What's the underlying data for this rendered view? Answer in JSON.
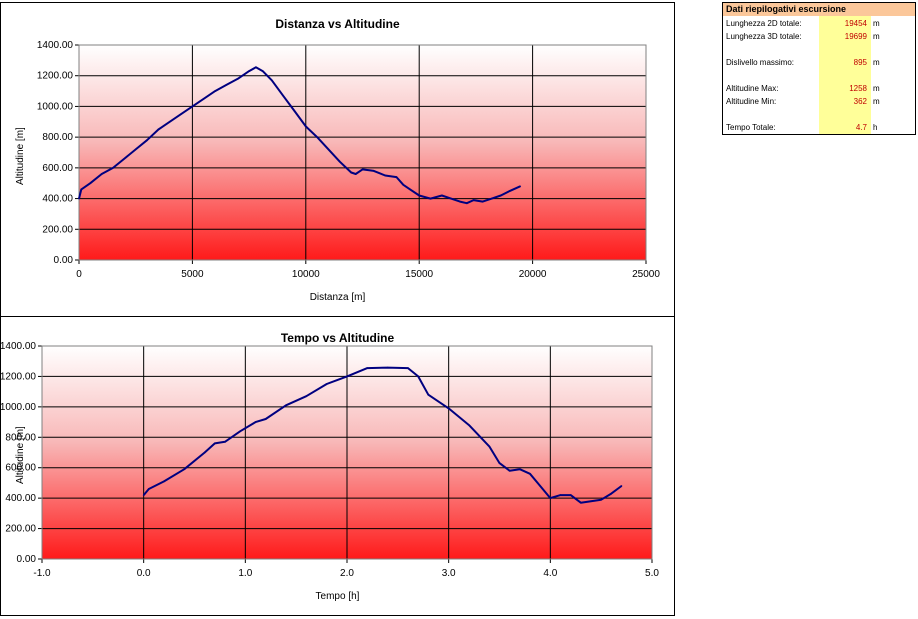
{
  "summary": {
    "title": "Dati riepilogativi escursione",
    "rows": [
      {
        "label": "Lunghezza 2D totale:",
        "value": "19454",
        "unit": "m"
      },
      {
        "label": "Lunghezza 3D totale:",
        "value": "19699",
        "unit": "m"
      },
      {
        "label": "Dislivello massimo:",
        "value": "895",
        "unit": "m"
      },
      {
        "label": "Altitudine Max:",
        "value": "1258",
        "unit": "m"
      },
      {
        "label": "Altitudine Min:",
        "value": "362",
        "unit": "m"
      },
      {
        "label": "Tempo Totale:",
        "value": "4.7",
        "unit": "h"
      }
    ]
  },
  "chart_data": [
    {
      "type": "line",
      "title": "Distanza vs Altitudine",
      "xlabel": "Distanza [m]",
      "ylabel": "Altitudine [m]",
      "xlim": [
        0,
        25000
      ],
      "ylim": [
        0,
        1400
      ],
      "xticks": [
        "0",
        "5000",
        "10000",
        "15000",
        "20000",
        "25000"
      ],
      "yticks": [
        "0.00",
        "200.00",
        "400.00",
        "600.00",
        "800.00",
        "1000.00",
        "1200.00",
        "1400.00"
      ],
      "grid": true,
      "background": "gradient white to red",
      "line_color": "#000080",
      "series": [
        {
          "x": [
            0,
            100,
            500,
            1000,
            1500,
            2000,
            2500,
            3000,
            3500,
            4000,
            4500,
            5000,
            5500,
            6000,
            6500,
            7000,
            7500,
            7800,
            8100,
            8500,
            9000,
            9500,
            10000,
            10500,
            11000,
            11500,
            12000,
            12200,
            12500,
            13000,
            13500,
            14000,
            14300,
            14600,
            15000,
            15500,
            16000,
            16400,
            16800,
            17100,
            17400,
            17800,
            18200,
            18600,
            19000,
            19454
          ],
          "y": [
            400,
            460,
            500,
            560,
            600,
            660,
            720,
            780,
            850,
            900,
            950,
            1000,
            1050,
            1100,
            1140,
            1180,
            1230,
            1255,
            1230,
            1170,
            1070,
            970,
            870,
            800,
            720,
            640,
            570,
            560,
            590,
            580,
            550,
            540,
            490,
            460,
            420,
            400,
            420,
            400,
            380,
            370,
            390,
            380,
            400,
            420,
            450,
            480
          ]
        }
      ]
    },
    {
      "type": "line",
      "title": "Tempo vs Altitudine",
      "xlabel": "Tempo [h]",
      "ylabel": "Altitudine [m]",
      "xlim": [
        -1.0,
        5.0
      ],
      "ylim": [
        0,
        1400
      ],
      "xticks": [
        "-1.0",
        "0.0",
        "1.0",
        "2.0",
        "3.0",
        "4.0",
        "5.0"
      ],
      "yticks": [
        "0.00",
        "200.00",
        "400.00",
        "600.00",
        "800.00",
        "1000.00",
        "1200.00",
        "1400.00"
      ],
      "grid": true,
      "background": "gradient white to red",
      "line_color": "#000080",
      "series": [
        {
          "x": [
            0.0,
            0.05,
            0.2,
            0.4,
            0.6,
            0.7,
            0.8,
            0.95,
            1.1,
            1.2,
            1.4,
            1.6,
            1.8,
            2.0,
            2.2,
            2.4,
            2.6,
            2.7,
            2.8,
            3.0,
            3.2,
            3.4,
            3.5,
            3.6,
            3.7,
            3.8,
            3.9,
            4.0,
            4.1,
            4.2,
            4.3,
            4.4,
            4.5,
            4.6,
            4.7
          ],
          "y": [
            420,
            460,
            510,
            590,
            700,
            760,
            770,
            840,
            900,
            920,
            1010,
            1070,
            1150,
            1200,
            1255,
            1258,
            1255,
            1200,
            1080,
            990,
            880,
            740,
            630,
            580,
            590,
            560,
            480,
            400,
            420,
            420,
            370,
            380,
            390,
            430,
            480
          ]
        }
      ]
    }
  ]
}
